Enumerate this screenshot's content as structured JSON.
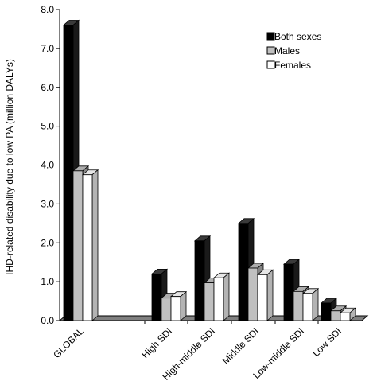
{
  "chart_data": {
    "type": "bar",
    "style": "3d-clustered",
    "categories": [
      "GLOBAL",
      "",
      "High SDI",
      "High-middle SDI",
      "Middle SDI",
      "Low-middle SDI",
      "Low SDI"
    ],
    "series": [
      {
        "name": "Both sexes",
        "color": "#000000",
        "values": [
          7.6,
          null,
          1.2,
          2.05,
          2.5,
          1.45,
          0.45
        ]
      },
      {
        "name": "Males",
        "color": "#c0c0c0",
        "values": [
          3.85,
          null,
          0.58,
          0.97,
          1.35,
          0.75,
          0.25
        ]
      },
      {
        "name": "Females",
        "color": "#ffffff",
        "values": [
          3.75,
          null,
          0.62,
          1.1,
          1.18,
          0.7,
          0.2
        ]
      }
    ],
    "ylabel": "IHD-related  disability due to low PA (million DALYs)",
    "ylim": [
      0,
      8
    ],
    "yticks": [
      "0.0",
      "1.0",
      "2.0",
      "3.0",
      "4.0",
      "5.0",
      "6.0",
      "7.0",
      "8.0"
    ],
    "legend": "top-right",
    "grid": false
  }
}
